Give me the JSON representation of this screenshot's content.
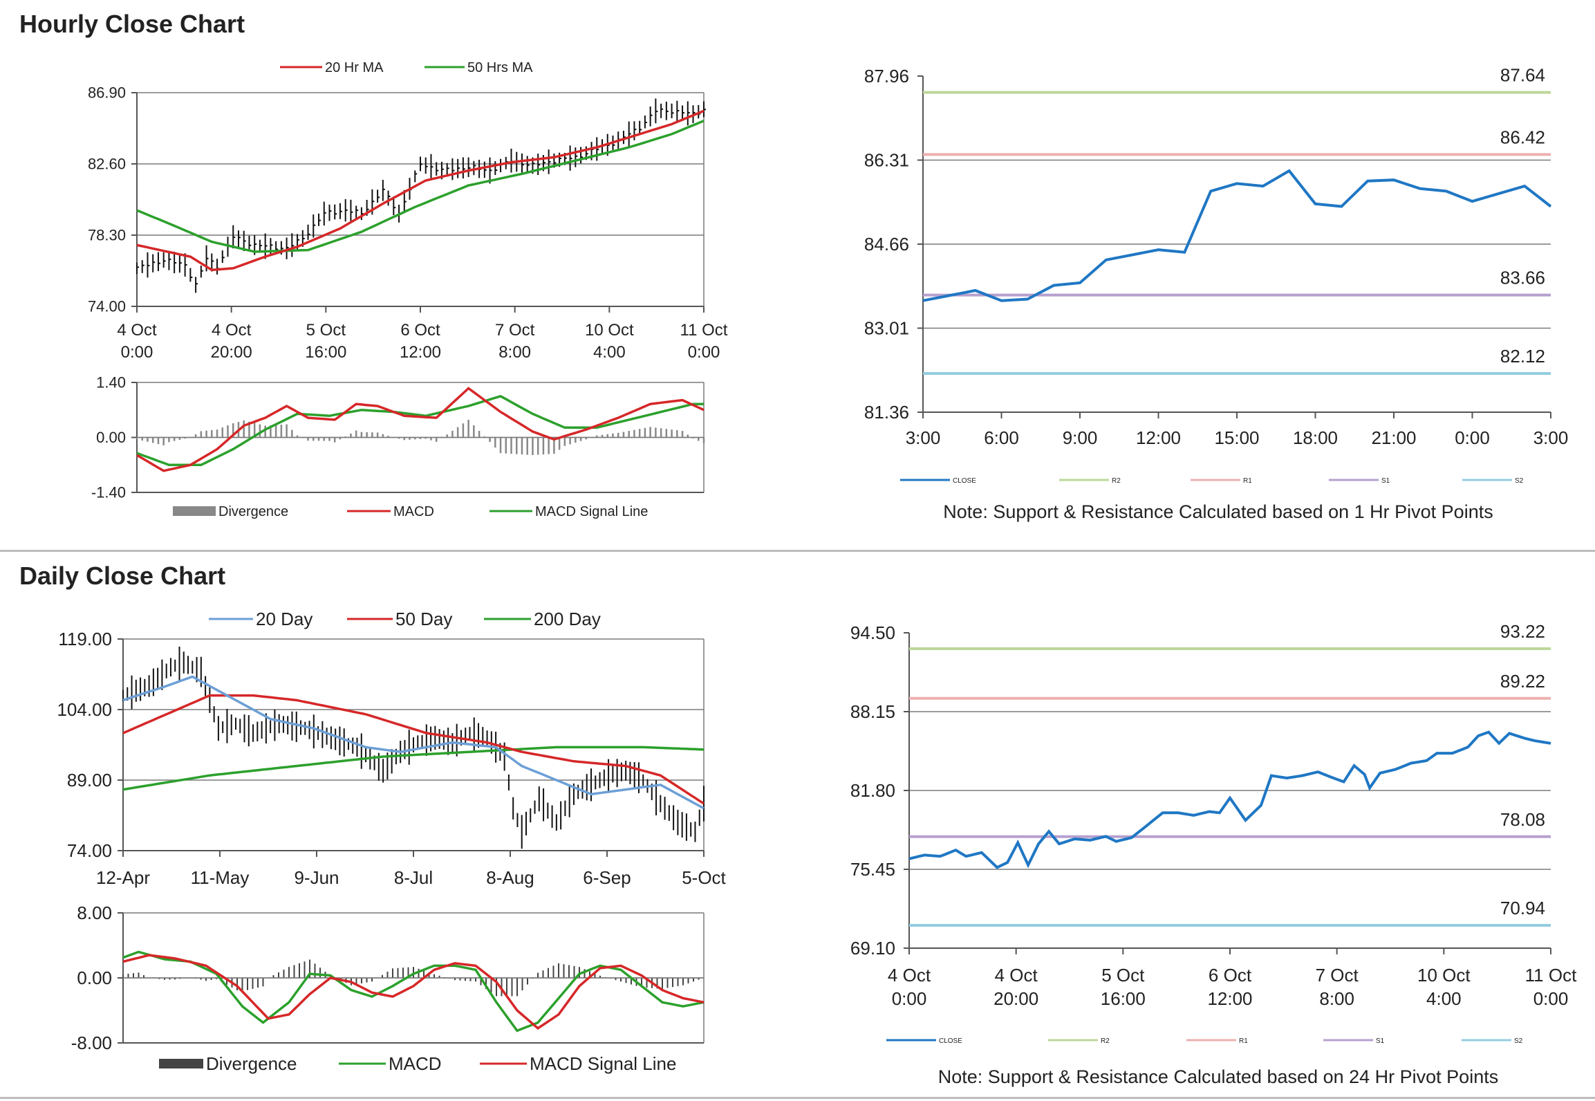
{
  "sections": {
    "hourly_title": "Hourly Close Chart",
    "daily_title": "Daily Close Chart"
  },
  "colors": {
    "red": "#d62728",
    "green": "#2ca02c",
    "blue": "#1f77c4",
    "lightblue": "#6c9fd6",
    "r2": "#bcd89a",
    "r1": "#eeb0b0",
    "s1": "#b7a0cf",
    "s2": "#93cde0",
    "grid": "#7a7a7a",
    "divergence": "#888888"
  },
  "chart_data": [
    {
      "id": "hourly_price",
      "type": "line",
      "ylim": [
        74.0,
        86.9
      ],
      "yticks": [
        "86.90",
        "82.60",
        "78.30",
        "74.00"
      ],
      "xticks": [
        "4 Oct\n0:00",
        "4 Oct\n20:00",
        "5 Oct\n16:00",
        "6 Oct\n12:00",
        "7 Oct\n8:00",
        "10 Oct\n4:00",
        "11 Oct\n0:00"
      ],
      "legend": [
        "20 Hr MA",
        "50 Hrs MA"
      ],
      "price_anchors": [
        [
          0,
          76.3
        ],
        [
          5,
          76.8
        ],
        [
          9,
          76.5
        ],
        [
          11,
          75.3
        ],
        [
          13,
          76.9
        ],
        [
          15,
          76.4
        ],
        [
          18,
          78.2
        ],
        [
          22,
          77.7
        ],
        [
          28,
          77.5
        ],
        [
          31,
          78.1
        ],
        [
          35,
          79.6
        ],
        [
          39,
          79.8
        ],
        [
          42,
          79.6
        ],
        [
          46,
          81.0
        ],
        [
          49,
          79.6
        ],
        [
          53,
          82.6
        ],
        [
          57,
          82.2
        ],
        [
          62,
          82.4
        ],
        [
          66,
          82.2
        ],
        [
          70,
          82.8
        ],
        [
          74,
          82.5
        ],
        [
          78,
          82.8
        ],
        [
          82,
          83.0
        ],
        [
          86,
          83.5
        ],
        [
          90,
          84.0
        ],
        [
          94,
          84.8
        ],
        [
          97,
          85.8
        ],
        [
          100,
          85.8
        ],
        [
          104,
          85.6
        ],
        [
          106,
          85.9
        ]
      ],
      "ma20_anchors": [
        [
          0,
          77.7
        ],
        [
          10,
          77.0
        ],
        [
          14,
          76.2
        ],
        [
          18,
          76.3
        ],
        [
          24,
          77.0
        ],
        [
          30,
          77.6
        ],
        [
          38,
          78.7
        ],
        [
          46,
          80.2
        ],
        [
          54,
          81.6
        ],
        [
          62,
          82.2
        ],
        [
          70,
          82.7
        ],
        [
          78,
          83.0
        ],
        [
          86,
          83.6
        ],
        [
          92,
          84.2
        ],
        [
          100,
          85.0
        ],
        [
          106,
          85.8
        ]
      ],
      "ma50_anchors": [
        [
          0,
          79.8
        ],
        [
          6,
          79.0
        ],
        [
          14,
          77.9
        ],
        [
          22,
          77.3
        ],
        [
          32,
          77.4
        ],
        [
          42,
          78.5
        ],
        [
          52,
          80.0
        ],
        [
          62,
          81.3
        ],
        [
          72,
          82.0
        ],
        [
          82,
          82.8
        ],
        [
          92,
          83.6
        ],
        [
          100,
          84.4
        ],
        [
          106,
          85.2
        ]
      ],
      "n": 107
    },
    {
      "id": "hourly_macd",
      "type": "line",
      "ylim": [
        -1.4,
        1.4
      ],
      "yticks": [
        "1.40",
        "0.00",
        "-1.40"
      ],
      "legend": [
        "Divergence",
        "MACD",
        "MACD Signal Line"
      ],
      "macd_anchors": [
        [
          0,
          -0.45
        ],
        [
          5,
          -0.85
        ],
        [
          10,
          -0.7
        ],
        [
          15,
          -0.3
        ],
        [
          20,
          0.3
        ],
        [
          24,
          0.5
        ],
        [
          28,
          0.8
        ],
        [
          32,
          0.5
        ],
        [
          37,
          0.45
        ],
        [
          41,
          0.85
        ],
        [
          45,
          0.8
        ],
        [
          50,
          0.55
        ],
        [
          56,
          0.5
        ],
        [
          62,
          1.25
        ],
        [
          68,
          0.65
        ],
        [
          74,
          0.15
        ],
        [
          78,
          -0.05
        ],
        [
          84,
          0.2
        ],
        [
          90,
          0.5
        ],
        [
          96,
          0.85
        ],
        [
          102,
          0.95
        ],
        [
          106,
          0.7
        ]
      ],
      "signal_anchors": [
        [
          0,
          -0.4
        ],
        [
          6,
          -0.7
        ],
        [
          12,
          -0.7
        ],
        [
          18,
          -0.3
        ],
        [
          24,
          0.2
        ],
        [
          30,
          0.6
        ],
        [
          36,
          0.55
        ],
        [
          42,
          0.7
        ],
        [
          48,
          0.65
        ],
        [
          54,
          0.55
        ],
        [
          62,
          0.8
        ],
        [
          68,
          1.05
        ],
        [
          74,
          0.6
        ],
        [
          80,
          0.25
        ],
        [
          86,
          0.25
        ],
        [
          92,
          0.45
        ],
        [
          98,
          0.65
        ],
        [
          104,
          0.85
        ],
        [
          106,
          0.85
        ]
      ],
      "n": 107
    },
    {
      "id": "hourly_pivot",
      "type": "line",
      "ylim": [
        81.36,
        87.96
      ],
      "yticks": [
        "87.96",
        "86.31",
        "84.66",
        "83.01",
        "81.36"
      ],
      "xticks": [
        "3:00",
        "6:00",
        "9:00",
        "12:00",
        "15:00",
        "18:00",
        "21:00",
        "0:00",
        "3:00"
      ],
      "legend": [
        "CLOSE",
        "R2",
        "R1",
        "S1",
        "S2"
      ],
      "levels": {
        "R2": 87.64,
        "R1": 86.42,
        "S1": 83.66,
        "S2": 82.12
      },
      "level_labels": {
        "R2": "87.64",
        "R1": "86.42",
        "S1": "83.66",
        "S2": "82.12"
      },
      "close": [
        83.55,
        83.65,
        83.75,
        83.55,
        83.58,
        83.85,
        83.9,
        84.35,
        84.45,
        84.55,
        84.5,
        85.7,
        85.85,
        85.8,
        86.1,
        85.45,
        85.4,
        85.9,
        85.92,
        85.75,
        85.7,
        85.5,
        85.65,
        85.8,
        85.4
      ],
      "note": "Note: Support & Resistance Calculated based on 1 Hr Pivot Points"
    },
    {
      "id": "daily_price",
      "type": "line",
      "ylim": [
        74.0,
        119.0
      ],
      "yticks": [
        "119.00",
        "104.00",
        "89.00",
        "74.00"
      ],
      "xticks": [
        "12-Apr",
        "11-May",
        "9-Jun",
        "8-Jul",
        "8-Aug",
        "6-Sep",
        "5-Oct"
      ],
      "legend": [
        "20 Day",
        "50 Day",
        "200 Day"
      ],
      "price_anchors": [
        [
          0,
          107
        ],
        [
          6,
          109
        ],
        [
          11,
          113
        ],
        [
          14,
          114
        ],
        [
          18,
          112
        ],
        [
          22,
          100
        ],
        [
          26,
          101
        ],
        [
          30,
          99
        ],
        [
          36,
          101
        ],
        [
          42,
          100
        ],
        [
          48,
          98
        ],
        [
          54,
          96
        ],
        [
          60,
          91
        ],
        [
          64,
          95
        ],
        [
          68,
          97
        ],
        [
          72,
          98
        ],
        [
          76,
          97
        ],
        [
          80,
          99
        ],
        [
          84,
          98
        ],
        [
          88,
          94
        ],
        [
          90,
          83
        ],
        [
          92,
          78
        ],
        [
          96,
          85
        ],
        [
          100,
          80
        ],
        [
          104,
          86
        ],
        [
          108,
          88
        ],
        [
          112,
          90
        ],
        [
          116,
          91
        ],
        [
          120,
          89
        ],
        [
          124,
          84
        ],
        [
          128,
          80
        ],
        [
          132,
          78
        ],
        [
          134,
          84
        ]
      ],
      "ma20_anchors": [
        [
          0,
          106
        ],
        [
          10,
          109
        ],
        [
          16,
          111
        ],
        [
          24,
          107
        ],
        [
          34,
          102
        ],
        [
          44,
          100
        ],
        [
          56,
          96
        ],
        [
          64,
          95
        ],
        [
          76,
          97
        ],
        [
          86,
          96
        ],
        [
          92,
          92
        ],
        [
          100,
          89
        ],
        [
          108,
          86
        ],
        [
          116,
          87
        ],
        [
          124,
          88
        ],
        [
          134,
          83
        ]
      ],
      "ma50_anchors": [
        [
          0,
          99
        ],
        [
          10,
          103
        ],
        [
          20,
          107
        ],
        [
          30,
          107
        ],
        [
          40,
          106
        ],
        [
          56,
          103
        ],
        [
          70,
          99
        ],
        [
          84,
          97
        ],
        [
          92,
          95
        ],
        [
          104,
          93
        ],
        [
          116,
          92
        ],
        [
          124,
          90
        ],
        [
          134,
          84
        ]
      ],
      "ma200_anchors": [
        [
          0,
          87
        ],
        [
          20,
          90
        ],
        [
          40,
          92
        ],
        [
          60,
          94
        ],
        [
          80,
          95
        ],
        [
          100,
          96
        ],
        [
          120,
          96
        ],
        [
          134,
          95.5
        ]
      ],
      "n": 135
    },
    {
      "id": "daily_macd",
      "type": "line",
      "ylim": [
        -8.0,
        8.0
      ],
      "yticks": [
        "8.00",
        "0.00",
        "-8.00"
      ],
      "legend": [
        "Divergence",
        "MACD",
        "MACD Signal Line"
      ],
      "macd_anchors": [
        [
          0,
          2.5
        ],
        [
          3,
          3.2
        ],
        [
          8,
          2.3
        ],
        [
          13,
          2.0
        ],
        [
          18,
          0.5
        ],
        [
          23,
          -3.5
        ],
        [
          27,
          -5.5
        ],
        [
          32,
          -3.0
        ],
        [
          36,
          0.5
        ],
        [
          40,
          0.3
        ],
        [
          44,
          -1.5
        ],
        [
          48,
          -2.3
        ],
        [
          52,
          -1.0
        ],
        [
          56,
          0.5
        ],
        [
          60,
          1.5
        ],
        [
          64,
          1.5
        ],
        [
          68,
          1.0
        ],
        [
          72,
          -3.0
        ],
        [
          76,
          -6.5
        ],
        [
          80,
          -5.5
        ],
        [
          84,
          -2.5
        ],
        [
          88,
          0.5
        ],
        [
          92,
          1.5
        ],
        [
          96,
          1.0
        ],
        [
          100,
          -1.0
        ],
        [
          104,
          -3.0
        ],
        [
          108,
          -3.5
        ],
        [
          112,
          -3.0
        ]
      ],
      "signal_anchors": [
        [
          0,
          2.0
        ],
        [
          5,
          2.8
        ],
        [
          10,
          2.4
        ],
        [
          16,
          1.5
        ],
        [
          22,
          -1.0
        ],
        [
          28,
          -5.0
        ],
        [
          32,
          -4.5
        ],
        [
          36,
          -2.0
        ],
        [
          40,
          0.0
        ],
        [
          44,
          -0.5
        ],
        [
          48,
          -1.8
        ],
        [
          52,
          -2.3
        ],
        [
          56,
          -1.0
        ],
        [
          60,
          1.0
        ],
        [
          64,
          1.8
        ],
        [
          68,
          1.5
        ],
        [
          72,
          -0.5
        ],
        [
          76,
          -4.0
        ],
        [
          80,
          -6.2
        ],
        [
          84,
          -4.5
        ],
        [
          88,
          -1.0
        ],
        [
          92,
          1.2
        ],
        [
          96,
          1.5
        ],
        [
          100,
          0.3
        ],
        [
          104,
          -1.5
        ],
        [
          108,
          -2.5
        ],
        [
          112,
          -3.0
        ]
      ],
      "n": 113
    },
    {
      "id": "daily_pivot",
      "type": "line",
      "ylim": [
        69.1,
        94.5
      ],
      "yticks": [
        "94.50",
        "88.15",
        "81.80",
        "75.45",
        "69.10"
      ],
      "xticks": [
        "4 Oct\n0:00",
        "4 Oct\n20:00",
        "5 Oct\n16:00",
        "6 Oct\n12:00",
        "7 Oct\n8:00",
        "10 Oct\n4:00",
        "11 Oct\n0:00"
      ],
      "legend": [
        "CLOSE",
        "R2",
        "R1",
        "S1",
        "S2"
      ],
      "levels": {
        "R2": 93.22,
        "R1": 89.22,
        "S1": 78.08,
        "S2": 70.94
      },
      "level_labels": {
        "R2": "93.22",
        "R1": "89.22",
        "S1": "78.08",
        "S2": "70.94"
      },
      "close_anchors": [
        [
          0,
          76.3
        ],
        [
          3,
          76.6
        ],
        [
          6,
          76.5
        ],
        [
          9,
          77.0
        ],
        [
          11,
          76.5
        ],
        [
          14,
          76.8
        ],
        [
          17,
          75.6
        ],
        [
          19,
          76.0
        ],
        [
          21,
          77.6
        ],
        [
          23,
          75.8
        ],
        [
          25,
          77.5
        ],
        [
          27,
          78.5
        ],
        [
          29,
          77.5
        ],
        [
          32,
          77.9
        ],
        [
          35,
          77.8
        ],
        [
          38,
          78.1
        ],
        [
          40,
          77.7
        ],
        [
          43,
          78.0
        ],
        [
          46,
          79.0
        ],
        [
          49,
          80.0
        ],
        [
          52,
          80.0
        ],
        [
          55,
          79.8
        ],
        [
          58,
          80.1
        ],
        [
          60,
          80.0
        ],
        [
          62,
          81.2
        ],
        [
          65,
          79.4
        ],
        [
          68,
          80.6
        ],
        [
          70,
          83.0
        ],
        [
          73,
          82.8
        ],
        [
          76,
          83.0
        ],
        [
          79,
          83.3
        ],
        [
          82,
          82.8
        ],
        [
          84,
          82.5
        ],
        [
          86,
          83.8
        ],
        [
          88,
          83.1
        ],
        [
          89,
          82.0
        ],
        [
          91,
          83.2
        ],
        [
          94,
          83.5
        ],
        [
          97,
          84.0
        ],
        [
          100,
          84.2
        ],
        [
          102,
          84.8
        ],
        [
          105,
          84.8
        ],
        [
          108,
          85.3
        ],
        [
          110,
          86.2
        ],
        [
          112,
          86.5
        ],
        [
          114,
          85.6
        ],
        [
          116,
          86.4
        ],
        [
          119,
          86.0
        ],
        [
          121,
          85.8
        ],
        [
          124,
          85.6
        ]
      ],
      "n": 125,
      "note": "Note:  Support & Resistance Calculated based on 24 Hr Pivot Points"
    }
  ]
}
